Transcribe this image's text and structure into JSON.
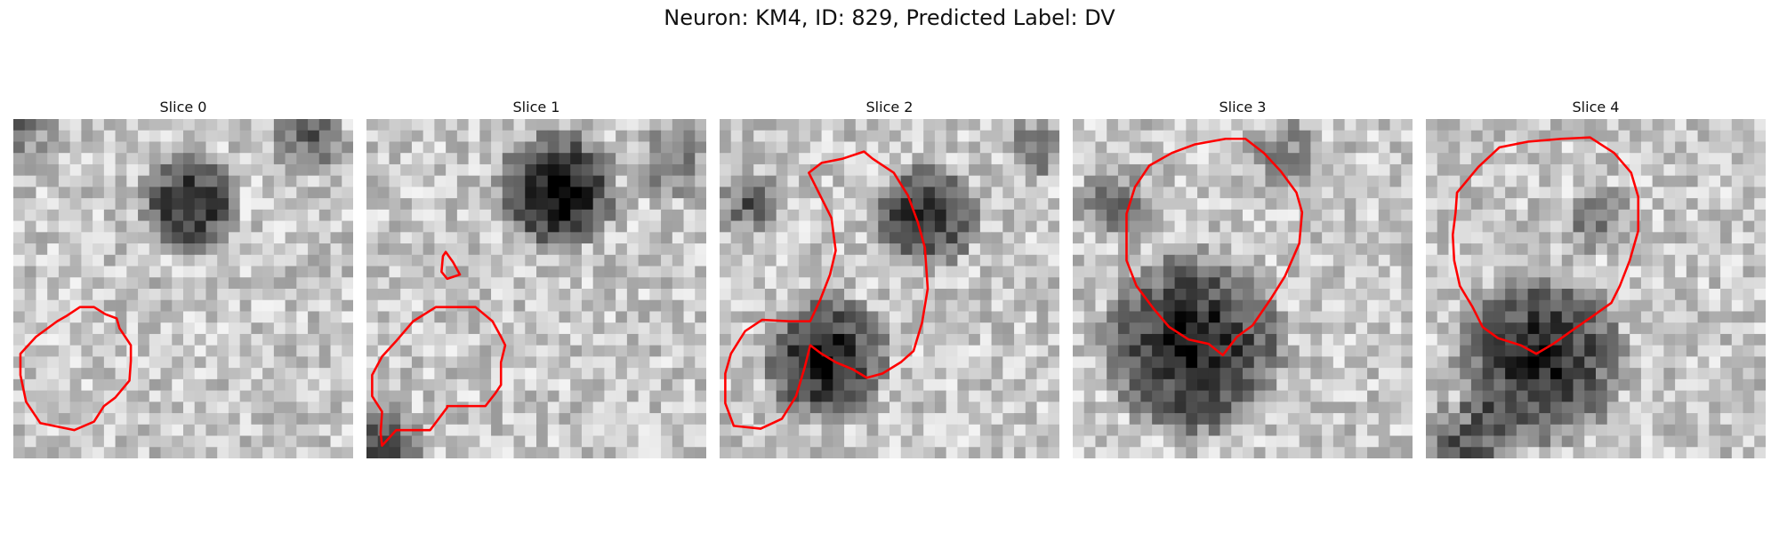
{
  "figure": {
    "title": "Neuron: KM4, ID: 829, Predicted Label: DV",
    "contour_color": "#ff0000"
  },
  "panels": [
    {
      "title": "Slice 0",
      "contours": [
        [
          [
            31,
            143
          ],
          [
            38,
            139
          ],
          [
            47,
            133
          ],
          [
            57,
            133
          ],
          [
            65,
            138
          ],
          [
            73,
            141
          ],
          [
            75,
            148
          ],
          [
            83,
            160
          ],
          [
            83,
            171
          ],
          [
            82,
            185
          ],
          [
            72,
            197
          ],
          [
            64,
            203
          ],
          [
            57,
            214
          ],
          [
            43,
            220
          ],
          [
            19,
            215
          ],
          [
            9,
            200
          ],
          [
            5,
            181
          ],
          [
            5,
            166
          ],
          [
            16,
            154
          ]
        ]
      ]
    },
    {
      "title": "Slice 1",
      "contours": [
        [
          [
            33,
            143
          ],
          [
            49,
            133
          ],
          [
            77,
            133
          ],
          [
            89,
            143
          ],
          [
            95,
            154
          ],
          [
            98,
            160
          ],
          [
            95,
            172
          ],
          [
            95,
            188
          ],
          [
            91,
            194
          ],
          [
            84,
            203
          ],
          [
            57,
            203
          ],
          [
            57,
            204
          ],
          [
            45,
            220
          ],
          [
            21,
            220
          ],
          [
            11,
            231
          ],
          [
            10,
            222
          ],
          [
            11,
            207
          ],
          [
            4,
            196
          ],
          [
            4,
            181
          ],
          [
            11,
            168
          ],
          [
            21,
            157
          ]
        ],
        [
          [
            56,
            94
          ],
          [
            61,
            101
          ],
          [
            66,
            110
          ],
          [
            57,
            113
          ],
          [
            53,
            108
          ],
          [
            54,
            97
          ]
        ]
      ]
    },
    {
      "title": "Slice 2",
      "contours": [
        [
          [
            63,
            38
          ],
          [
            72,
            31
          ],
          [
            87,
            28
          ],
          [
            102,
            23
          ],
          [
            108,
            28
          ],
          [
            123,
            38
          ],
          [
            133,
            54
          ],
          [
            140,
            73
          ],
          [
            145,
            91
          ],
          [
            147,
            120
          ],
          [
            143,
            144
          ],
          [
            137,
            164
          ],
          [
            128,
            172
          ],
          [
            115,
            180
          ],
          [
            104,
            183
          ],
          [
            94,
            177
          ],
          [
            82,
            172
          ],
          [
            72,
            166
          ],
          [
            64,
            160
          ],
          [
            60,
            176
          ],
          [
            54,
            196
          ],
          [
            44,
            212
          ],
          [
            29,
            219
          ],
          [
            10,
            217
          ],
          [
            4,
            201
          ],
          [
            4,
            180
          ],
          [
            8,
            166
          ],
          [
            18,
            150
          ],
          [
            30,
            142
          ],
          [
            49,
            143
          ],
          [
            64,
            143
          ],
          [
            71,
            128
          ],
          [
            78,
            110
          ],
          [
            82,
            93
          ],
          [
            79,
            70
          ]
        ]
      ]
    },
    {
      "title": "Slice 3",
      "contours": [
        [
          [
            108,
            14
          ],
          [
            122,
            14
          ],
          [
            135,
            24
          ],
          [
            147,
            37
          ],
          [
            158,
            52
          ],
          [
            162,
            66
          ],
          [
            160,
            88
          ],
          [
            150,
            111
          ],
          [
            140,
            127
          ],
          [
            127,
            146
          ],
          [
            116,
            154
          ],
          [
            106,
            167
          ],
          [
            96,
            159
          ],
          [
            82,
            156
          ],
          [
            68,
            147
          ],
          [
            57,
            134
          ],
          [
            45,
            118
          ],
          [
            38,
            100
          ],
          [
            38,
            67
          ],
          [
            44,
            48
          ],
          [
            54,
            33
          ],
          [
            70,
            24
          ],
          [
            86,
            18
          ]
        ]
      ]
    },
    {
      "title": "Slice 4",
      "contours": [
        [
          [
            96,
            14
          ],
          [
            116,
            13
          ],
          [
            133,
            24
          ],
          [
            145,
            38
          ],
          [
            150,
            55
          ],
          [
            150,
            79
          ],
          [
            144,
            100
          ],
          [
            137,
            118
          ],
          [
            131,
            130
          ],
          [
            117,
            140
          ],
          [
            104,
            149
          ],
          [
            90,
            159
          ],
          [
            78,
            166
          ],
          [
            67,
            160
          ],
          [
            51,
            155
          ],
          [
            40,
            147
          ],
          [
            33,
            133
          ],
          [
            24,
            118
          ],
          [
            20,
            100
          ],
          [
            19,
            82
          ],
          [
            21,
            66
          ],
          [
            22,
            52
          ],
          [
            37,
            34
          ],
          [
            52,
            20
          ],
          [
            72,
            16
          ]
        ]
      ]
    }
  ]
}
